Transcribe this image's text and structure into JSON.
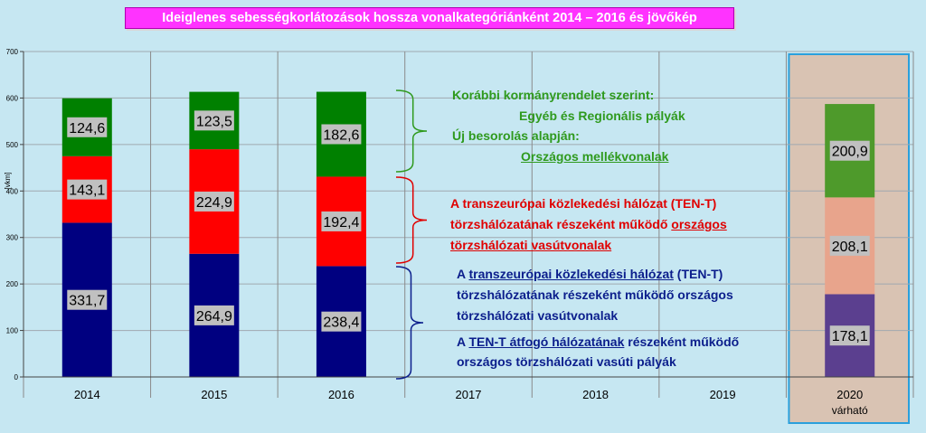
{
  "chart_data": {
    "type": "bar",
    "stacked": true,
    "title": "Ideiglenes sebességkorlátozások hossza vonalkategóriánként 2014 – 2016 és jövőkép",
    "ylabel": "[vkm]",
    "ylim": [
      0,
      700
    ],
    "yticks": [
      "0",
      "100",
      "200",
      "300",
      "400",
      "500",
      "600",
      "700"
    ],
    "grid": true,
    "categories": [
      "2014",
      "2015",
      "2016",
      "2017",
      "2018",
      "2019",
      "2020"
    ],
    "category_sublabels": [
      "",
      "",
      "",
      "",
      "",
      "",
      "várható"
    ],
    "series": [
      {
        "values": [
          331.7,
          264.9,
          238.4,
          null,
          null,
          null,
          178.1
        ],
        "labels": [
          "331,7",
          "264,9",
          "238,4",
          "",
          "",
          "",
          "178,1"
        ],
        "color": "#000080",
        "forecast_color": "#5b3f8f"
      },
      {
        "values": [
          143.1,
          224.9,
          192.4,
          null,
          null,
          null,
          208.1
        ],
        "labels": [
          "143,1",
          "224,9",
          "192,4",
          "",
          "",
          "",
          "208,1"
        ],
        "color": "#ff0000",
        "forecast_color": "#e8a48c"
      },
      {
        "values": [
          124.6,
          123.5,
          182.6,
          null,
          null,
          null,
          200.9
        ],
        "labels": [
          "124,6",
          "123,5",
          "182,6",
          "",
          "",
          "",
          "200,9"
        ],
        "color": "#008000",
        "forecast_color": "#4e9a2b"
      }
    ],
    "annotations": {
      "green": {
        "line1": "Korábbi kormányrendelet szerint:",
        "line2": "Egyéb és Regionális pályák",
        "line3": "Új besorolás alapján:",
        "line4": "Országos mellékvonalak",
        "color": "#2f9a1e"
      },
      "red": {
        "line1": "A transzeurópai közlekedési hálózat (TEN-T)",
        "line2a": "törzshálózatának részeként működő ",
        "line2b": "országos",
        "line3": "törzshálózati vasútvonalak",
        "color": "#e00000"
      },
      "blue": {
        "l1a": "A ",
        "l1b": "transzeurópai közlekedési hálózat",
        "l1c": " (TEN-T)",
        "line2": "törzshálózatának részeként működő országos",
        "line3": "törzshálózati vasútvonalak",
        "l4a": "A ",
        "l4b": "TEN-T átfogó hálózatának",
        "l4c": " részeként működő",
        "line5": "országos törzshálózati vasúti pályák",
        "color": "#0b1e8c"
      }
    }
  }
}
